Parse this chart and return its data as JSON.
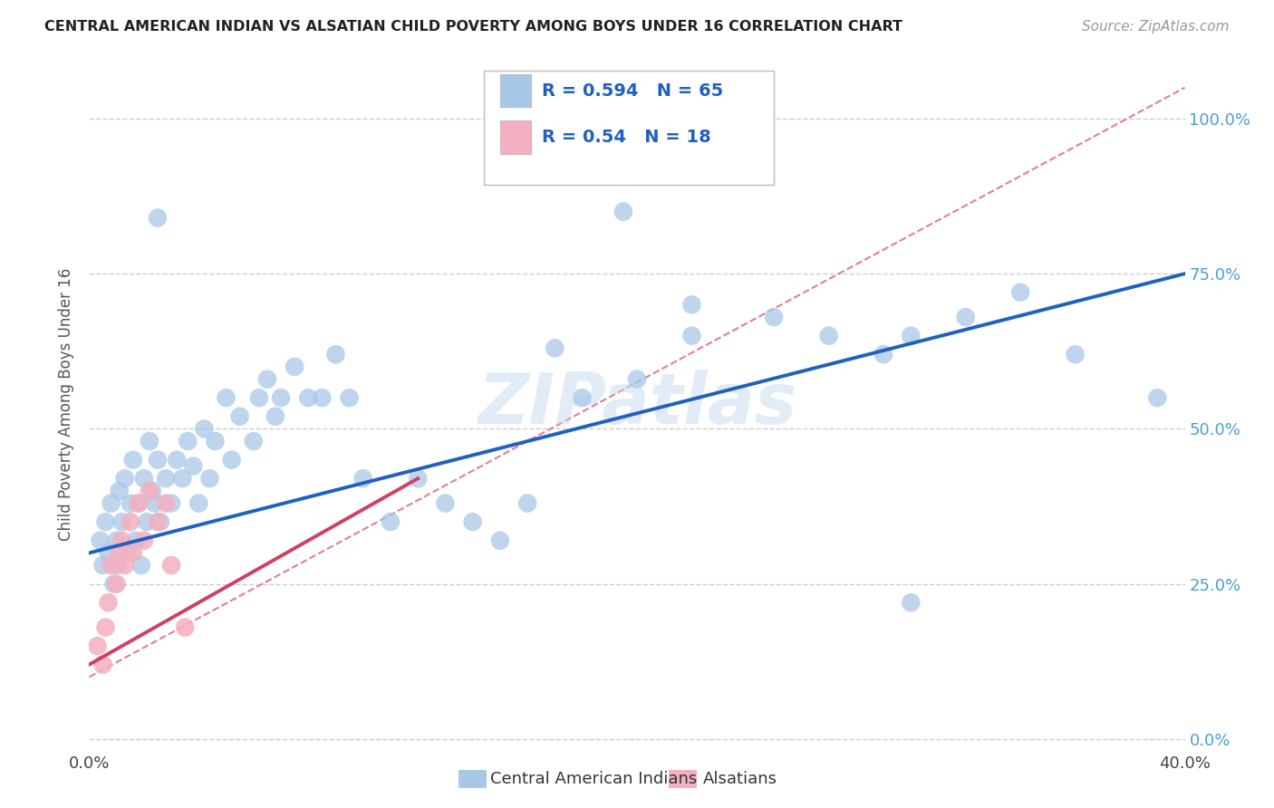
{
  "title": "CENTRAL AMERICAN INDIAN VS ALSATIAN CHILD POVERTY AMONG BOYS UNDER 16 CORRELATION CHART",
  "source": "Source: ZipAtlas.com",
  "ylabel": "Child Poverty Among Boys Under 16",
  "xlim": [
    0.0,
    0.4
  ],
  "ylim": [
    -0.02,
    1.1
  ],
  "ytick_vals": [
    0.0,
    0.25,
    0.5,
    0.75,
    1.0
  ],
  "ytick_labels": [
    "0.0%",
    "25.0%",
    "50.0%",
    "75.0%",
    "100.0%"
  ],
  "xtick_vals": [
    0.0,
    0.4
  ],
  "xtick_labels": [
    "0.0%",
    "40.0%"
  ],
  "blue_R": 0.594,
  "blue_N": 65,
  "pink_R": 0.54,
  "pink_N": 18,
  "blue_color": "#a8c8e8",
  "pink_color": "#f4b0c0",
  "blue_line_color": "#2060c0",
  "pink_line_color": "#d04060",
  "ref_line_color": "#e08090",
  "legend_label_blue": "Central American Indians",
  "legend_label_pink": "Alsatians",
  "watermark": "ZIPatlas",
  "blue_line_x0": 0.0,
  "blue_line_y0": 0.3,
  "blue_line_x1": 0.4,
  "blue_line_y1": 0.75,
  "pink_line_x0": 0.0,
  "pink_line_x1": 0.12,
  "pink_line_y0": 0.12,
  "pink_line_y1": 0.42,
  "ref_line_x0": 0.0,
  "ref_line_y0": 0.1,
  "ref_line_x1": 0.4,
  "ref_line_y1": 1.05,
  "blue_scatter_x": [
    0.004,
    0.005,
    0.006,
    0.007,
    0.008,
    0.009,
    0.01,
    0.01,
    0.011,
    0.012,
    0.013,
    0.014,
    0.015,
    0.016,
    0.017,
    0.018,
    0.019,
    0.02,
    0.021,
    0.022,
    0.023,
    0.024,
    0.025,
    0.026,
    0.028,
    0.03,
    0.032,
    0.034,
    0.036,
    0.038,
    0.04,
    0.042,
    0.044,
    0.046,
    0.05,
    0.052,
    0.055,
    0.06,
    0.062,
    0.065,
    0.068,
    0.07,
    0.075,
    0.08,
    0.085,
    0.09,
    0.095,
    0.1,
    0.11,
    0.12,
    0.13,
    0.14,
    0.15,
    0.16,
    0.18,
    0.2,
    0.22,
    0.25,
    0.27,
    0.29,
    0.3,
    0.32,
    0.34,
    0.36,
    0.39
  ],
  "blue_scatter_y": [
    0.32,
    0.28,
    0.35,
    0.3,
    0.38,
    0.25,
    0.32,
    0.28,
    0.4,
    0.35,
    0.42,
    0.3,
    0.38,
    0.45,
    0.32,
    0.38,
    0.28,
    0.42,
    0.35,
    0.48,
    0.4,
    0.38,
    0.45,
    0.35,
    0.42,
    0.38,
    0.45,
    0.42,
    0.48,
    0.44,
    0.38,
    0.5,
    0.42,
    0.48,
    0.55,
    0.45,
    0.52,
    0.48,
    0.55,
    0.58,
    0.52,
    0.55,
    0.6,
    0.55,
    0.55,
    0.62,
    0.55,
    0.42,
    0.35,
    0.42,
    0.38,
    0.35,
    0.32,
    0.38,
    0.55,
    0.58,
    0.65,
    0.68,
    0.65,
    0.62,
    0.65,
    0.68,
    0.72,
    0.62,
    0.55
  ],
  "pink_scatter_x": [
    0.003,
    0.005,
    0.006,
    0.007,
    0.008,
    0.01,
    0.011,
    0.012,
    0.013,
    0.015,
    0.016,
    0.018,
    0.02,
    0.022,
    0.025,
    0.028,
    0.03,
    0.035
  ],
  "pink_scatter_y": [
    0.15,
    0.12,
    0.18,
    0.22,
    0.28,
    0.25,
    0.3,
    0.32,
    0.28,
    0.35,
    0.3,
    0.38,
    0.32,
    0.4,
    0.35,
    0.38,
    0.28,
    0.18
  ]
}
